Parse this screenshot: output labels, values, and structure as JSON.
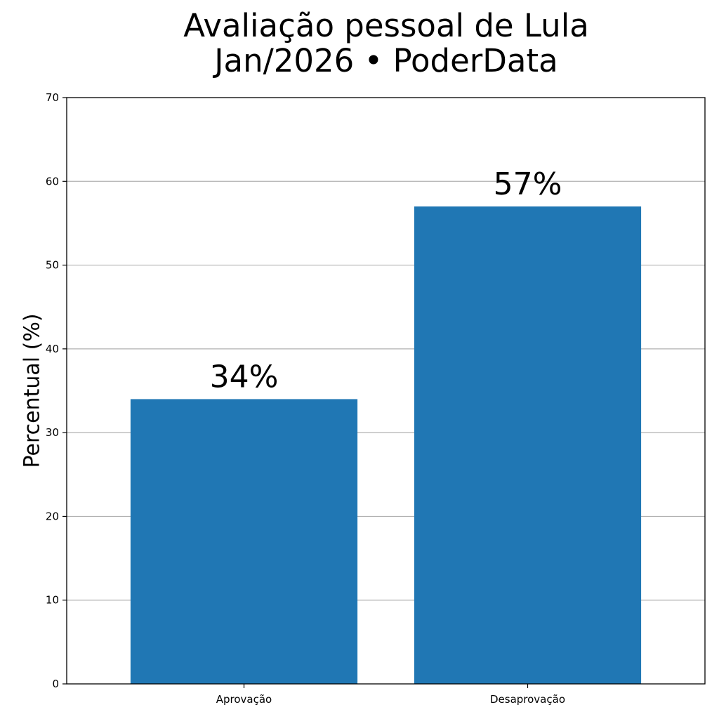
{
  "chart_data": {
    "type": "bar",
    "title_line1": "Avaliação pessoal de Lula",
    "title_line2": "Jan/2026 • PoderData",
    "xlabel": "",
    "ylabel": "Percentual (%)",
    "categories": [
      "Aprovação",
      "Desaprovação"
    ],
    "values": [
      34,
      57
    ],
    "value_labels": [
      "34%",
      "57%"
    ],
    "ylim": [
      0,
      70
    ],
    "yticks": [
      0,
      10,
      20,
      30,
      40,
      50,
      60,
      70
    ],
    "grid": "y",
    "bar_color": "#2077b4"
  }
}
